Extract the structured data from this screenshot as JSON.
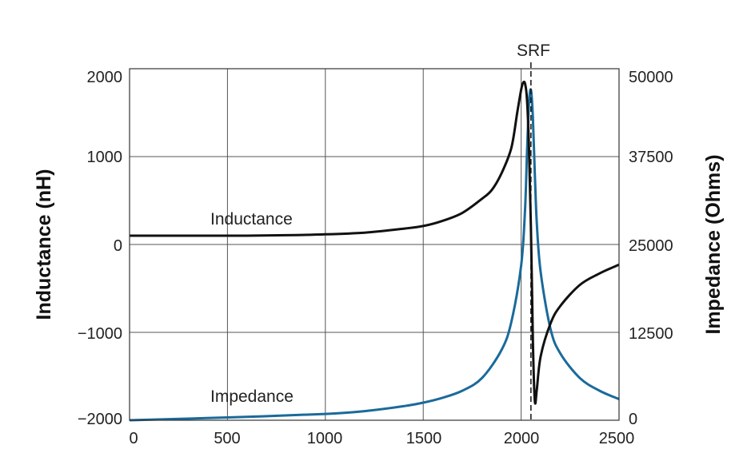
{
  "chart_data": {
    "type": "line",
    "x_ticks": [
      "0",
      "500",
      "1000",
      "1500",
      "2000",
      "2500"
    ],
    "xlim": [
      0,
      2500
    ],
    "y_left": {
      "label": "Inductance (nH)",
      "lim": [
        -2000,
        2000
      ],
      "ticks": [
        "2000",
        "1000",
        "0",
        "−1000",
        "−2000"
      ]
    },
    "y_right": {
      "label": "Impedance (Ohms)",
      "lim": [
        0,
        50000
      ],
      "ticks": [
        "50000",
        "37500",
        "25000",
        "12500",
        "0"
      ]
    },
    "grid": true,
    "annotations": {
      "srf": "SRF",
      "inductance": "Inductance",
      "impedance": "Impedance"
    },
    "srf_x": 2050,
    "series": [
      {
        "name": "Inductance",
        "axis": "left",
        "color": "#111111",
        "points": [
          [
            0,
            100
          ],
          [
            200,
            100
          ],
          [
            400,
            100
          ],
          [
            600,
            100
          ],
          [
            800,
            105
          ],
          [
            1000,
            115
          ],
          [
            1200,
            135
          ],
          [
            1400,
            180
          ],
          [
            1500,
            210
          ],
          [
            1600,
            270
          ],
          [
            1700,
            360
          ],
          [
            1800,
            520
          ],
          [
            1850,
            620
          ],
          [
            1900,
            810
          ],
          [
            1950,
            1100
          ],
          [
            1980,
            1500
          ],
          [
            2000,
            1760
          ],
          [
            2010,
            1840
          ],
          [
            2020,
            1830
          ],
          [
            2030,
            1650
          ],
          [
            2040,
            1100
          ],
          [
            2050,
            200
          ],
          [
            2060,
            -1100
          ],
          [
            2070,
            -1780
          ],
          [
            2080,
            -1650
          ],
          [
            2100,
            -1270
          ],
          [
            2150,
            -900
          ],
          [
            2200,
            -700
          ],
          [
            2300,
            -460
          ],
          [
            2400,
            -330
          ],
          [
            2500,
            -230
          ]
        ]
      },
      {
        "name": "Impedance",
        "axis": "right",
        "color": "#1a6a9a",
        "points": [
          [
            0,
            0
          ],
          [
            500,
            400
          ],
          [
            1000,
            900
          ],
          [
            1200,
            1300
          ],
          [
            1400,
            2000
          ],
          [
            1500,
            2500
          ],
          [
            1600,
            3200
          ],
          [
            1700,
            4200
          ],
          [
            1800,
            6000
          ],
          [
            1900,
            10000
          ],
          [
            1950,
            14000
          ],
          [
            2000,
            22000
          ],
          [
            2020,
            30000
          ],
          [
            2030,
            38000
          ],
          [
            2040,
            45000
          ],
          [
            2050,
            47000
          ],
          [
            2060,
            43000
          ],
          [
            2070,
            35000
          ],
          [
            2080,
            28000
          ],
          [
            2100,
            21000
          ],
          [
            2150,
            13000
          ],
          [
            2200,
            9500
          ],
          [
            2300,
            6000
          ],
          [
            2400,
            4200
          ],
          [
            2500,
            3000
          ]
        ]
      }
    ]
  }
}
